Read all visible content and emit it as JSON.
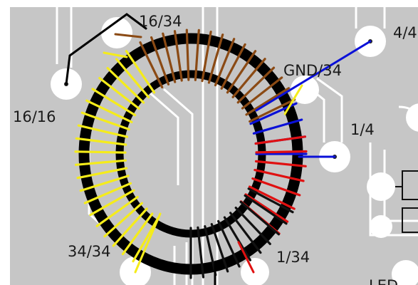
{
  "labels": {
    "pin_16_34": "16/34",
    "pin_16_16": "16/16",
    "pin_gnd_34": "GND/34",
    "pin_4_4": "4/4",
    "pin_1_4": "1/4",
    "pin_34_34": "34/34",
    "pin_1_34": "1/34",
    "led": "LED"
  },
  "colors": {
    "board": "#c6c6c6",
    "copper_trace": "#ececec",
    "pad": "#ffffff",
    "frame": "#ffffff",
    "core": "#000000",
    "winding_brown": "#8b4a14",
    "winding_yellow": "#f5ec1a",
    "winding_blue": "#0a10d8",
    "winding_red": "#e01010",
    "winding_black": "#111111",
    "wire_black": "#000000"
  },
  "windings": [
    {
      "name": "brown",
      "color_key": "winding_brown",
      "from_deg": 244,
      "to_deg": 334,
      "turns": 16
    },
    {
      "name": "blue",
      "color_key": "winding_blue",
      "from_deg": 336,
      "to_deg": 360,
      "turns": 4
    },
    {
      "name": "red",
      "color_key": "winding_red",
      "from_deg": 352,
      "to_deg": 400,
      "turns": 8
    },
    {
      "name": "black",
      "color_key": "winding_black",
      "from_deg": 28,
      "to_deg": 90,
      "turns": 11
    },
    {
      "name": "yellow",
      "color_key": "winding_yellow",
      "from_deg": 120,
      "to_deg": 236,
      "turns": 20
    }
  ]
}
